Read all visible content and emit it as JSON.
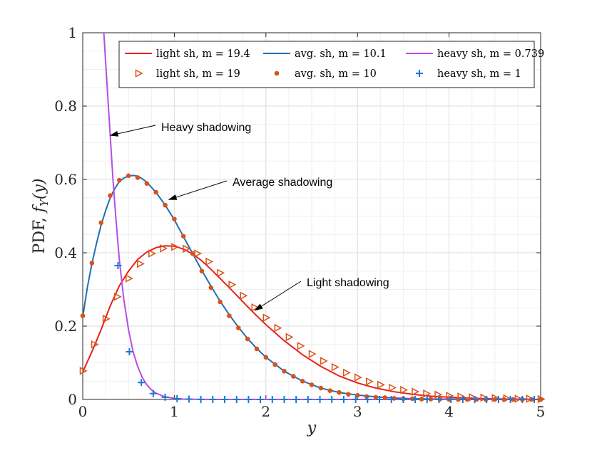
{
  "chart_data": {
    "type": "line",
    "xlabel": "y",
    "ylabel": "PDF, f_Y(y)",
    "ylabel_plain": "PDF, ",
    "ylabel_f": "f",
    "ylabel_sub": "Y",
    "ylabel_arg": "(y)",
    "xlim": [
      0,
      5
    ],
    "ylim": [
      0,
      1
    ],
    "xticks": [
      "0",
      "1",
      "2",
      "3",
      "4",
      "5"
    ],
    "yticks": [
      "0",
      "0.2",
      "0.4",
      "0.6",
      "0.8",
      "1"
    ],
    "xtick_values": [
      0,
      1,
      2,
      3,
      4,
      5
    ],
    "ytick_values": [
      0,
      0.2,
      0.4,
      0.6,
      0.8,
      1
    ],
    "grid": true,
    "legend_position": "top",
    "series": [
      {
        "name": "light sh, m = 19.4",
        "kind": "line",
        "color": "#e8211c",
        "x": [
          0,
          0.1,
          0.2,
          0.3,
          0.4,
          0.5,
          0.6,
          0.7,
          0.8,
          0.9,
          1.0,
          1.1,
          1.2,
          1.3,
          1.4,
          1.5,
          1.6,
          1.7,
          1.8,
          1.9,
          2.0,
          2.2,
          2.4,
          2.6,
          2.8,
          3.0,
          3.2,
          3.4,
          3.6,
          3.8,
          4.0,
          4.2,
          4.4,
          4.6,
          4.8,
          5.0
        ],
        "y": [
          0.075,
          0.13,
          0.19,
          0.255,
          0.31,
          0.35,
          0.382,
          0.402,
          0.414,
          0.419,
          0.418,
          0.41,
          0.397,
          0.378,
          0.355,
          0.33,
          0.305,
          0.279,
          0.253,
          0.228,
          0.204,
          0.16,
          0.122,
          0.09,
          0.064,
          0.045,
          0.031,
          0.021,
          0.014,
          0.009,
          0.006,
          0.004,
          0.002,
          0.001,
          0.001,
          0.0
        ]
      },
      {
        "name": "avg. sh, m = 10.1",
        "kind": "line",
        "color": "#1f6fb4",
        "x": [
          0,
          0.05,
          0.1,
          0.15,
          0.2,
          0.25,
          0.3,
          0.35,
          0.4,
          0.45,
          0.5,
          0.55,
          0.6,
          0.65,
          0.7,
          0.8,
          0.9,
          1.0,
          1.1,
          1.2,
          1.3,
          1.4,
          1.5,
          1.6,
          1.7,
          1.8,
          1.9,
          2.0,
          2.2,
          2.4,
          2.6,
          2.8,
          3.0,
          3.2,
          3.4,
          3.6,
          3.8,
          4.0,
          4.5,
          5.0
        ],
        "y": [
          0.225,
          0.305,
          0.37,
          0.425,
          0.475,
          0.515,
          0.55,
          0.575,
          0.594,
          0.604,
          0.609,
          0.611,
          0.609,
          0.602,
          0.592,
          0.565,
          0.53,
          0.49,
          0.444,
          0.398,
          0.352,
          0.309,
          0.268,
          0.231,
          0.197,
          0.166,
          0.139,
          0.115,
          0.077,
          0.05,
          0.031,
          0.019,
          0.012,
          0.007,
          0.004,
          0.002,
          0.001,
          0.001,
          0.0,
          0.0
        ]
      },
      {
        "name": "heavy sh, m = 0.739",
        "kind": "line",
        "color": "#b84ce8",
        "x": [
          0.23,
          0.25,
          0.28,
          0.3,
          0.33,
          0.36,
          0.4,
          0.45,
          0.5,
          0.55,
          0.6,
          0.65,
          0.7,
          0.75,
          0.8,
          0.9,
          1.0,
          1.1,
          1.2,
          1.4,
          1.6,
          2.0,
          3.0,
          4.0,
          5.0
        ],
        "y": [
          1.0,
          0.92,
          0.8,
          0.72,
          0.6,
          0.5,
          0.38,
          0.27,
          0.19,
          0.13,
          0.09,
          0.06,
          0.04,
          0.026,
          0.017,
          0.007,
          0.003,
          0.001,
          0.0005,
          0.0001,
          0.0,
          0.0,
          0.0,
          0.0,
          0.0
        ]
      },
      {
        "name": "light sh, m = 19",
        "kind": "marker",
        "marker": "triangle-right",
        "color": "#d95319",
        "x": [
          0,
          0.125,
          0.25,
          0.375,
          0.5,
          0.625,
          0.75,
          0.875,
          1.0,
          1.125,
          1.25,
          1.375,
          1.5,
          1.625,
          1.75,
          1.875,
          2.0,
          2.125,
          2.25,
          2.375,
          2.5,
          2.625,
          2.75,
          2.875,
          3.0,
          3.125,
          3.25,
          3.375,
          3.5,
          3.625,
          3.75,
          3.875,
          4.0,
          4.125,
          4.25,
          4.375,
          4.5,
          4.625,
          4.75,
          4.875,
          5.0
        ],
        "y": [
          0.078,
          0.15,
          0.22,
          0.28,
          0.33,
          0.37,
          0.398,
          0.412,
          0.416,
          0.411,
          0.398,
          0.376,
          0.345,
          0.313,
          0.283,
          0.251,
          0.223,
          0.195,
          0.17,
          0.146,
          0.124,
          0.105,
          0.088,
          0.073,
          0.06,
          0.049,
          0.04,
          0.032,
          0.026,
          0.021,
          0.016,
          0.013,
          0.01,
          0.008,
          0.006,
          0.005,
          0.004,
          0.003,
          0.002,
          0.002,
          0.001
        ]
      },
      {
        "name": "avg. sh, m = 10",
        "kind": "marker",
        "marker": "dot",
        "color": "#d95319",
        "x": [
          0,
          0.1,
          0.2,
          0.3,
          0.4,
          0.5,
          0.6,
          0.7,
          0.8,
          0.9,
          1.0,
          1.1,
          1.2,
          1.3,
          1.4,
          1.5,
          1.6,
          1.7,
          1.8,
          1.9,
          2.0,
          2.1,
          2.2,
          2.3,
          2.4,
          2.5,
          2.6,
          2.7,
          2.8,
          2.9,
          3.0,
          3.1,
          3.2,
          3.3,
          3.4,
          3.5,
          3.6,
          3.7,
          3.8,
          3.9,
          4.0,
          4.1,
          4.2,
          4.3,
          4.4,
          4.5,
          4.6,
          4.7,
          4.8,
          4.9,
          5.0
        ],
        "y": [
          0.228,
          0.372,
          0.482,
          0.556,
          0.598,
          0.61,
          0.605,
          0.589,
          0.565,
          0.53,
          0.492,
          0.445,
          0.398,
          0.35,
          0.305,
          0.266,
          0.228,
          0.195,
          0.165,
          0.138,
          0.115,
          0.095,
          0.077,
          0.063,
          0.05,
          0.04,
          0.031,
          0.024,
          0.019,
          0.014,
          0.011,
          0.008,
          0.006,
          0.005,
          0.003,
          0.002,
          0.002,
          0.001,
          0.001,
          0.001,
          0.0,
          0.0,
          0.0,
          0.0,
          0.0,
          0.0,
          0.0,
          0.0,
          0.0,
          0.0,
          0.0
        ]
      },
      {
        "name": "heavy sh, m = 1",
        "kind": "marker",
        "marker": "plus",
        "color": "#1f77d4",
        "x": [
          0.385,
          0.51,
          0.64,
          0.77,
          0.9,
          1.03,
          1.16,
          1.29,
          1.42,
          1.55,
          1.68,
          1.81,
          1.94,
          2.07,
          2.2,
          2.33,
          2.46,
          2.59,
          2.72,
          2.85,
          2.98,
          3.11,
          3.24,
          3.37,
          3.5,
          3.63,
          3.76,
          3.89,
          4.02,
          4.15,
          4.28,
          4.41,
          4.54,
          4.67,
          4.8,
          4.93
        ],
        "y": [
          0.365,
          0.13,
          0.046,
          0.016,
          0.006,
          0.002,
          0.001,
          0.0,
          0.0,
          0.0,
          0.0,
          0.0,
          0.0,
          0.0,
          0.0,
          0.0,
          0.0,
          0.0,
          0.0,
          0.0,
          0.0,
          0.0,
          0.0,
          0.0,
          0.0,
          0.0,
          0.0,
          0.0,
          0.0,
          0.0,
          0.0,
          0.0,
          0.0,
          0.0,
          0.0,
          0.0
        ]
      }
    ],
    "annotations": [
      {
        "text": "Heavy shadowing",
        "target_x": 0.3,
        "target_y": 0.72
      },
      {
        "text": "Average shadowing",
        "target_x": 0.94,
        "target_y": 0.545
      },
      {
        "text": "Light shadowing",
        "target_x": 1.88,
        "target_y": 0.243
      }
    ]
  }
}
